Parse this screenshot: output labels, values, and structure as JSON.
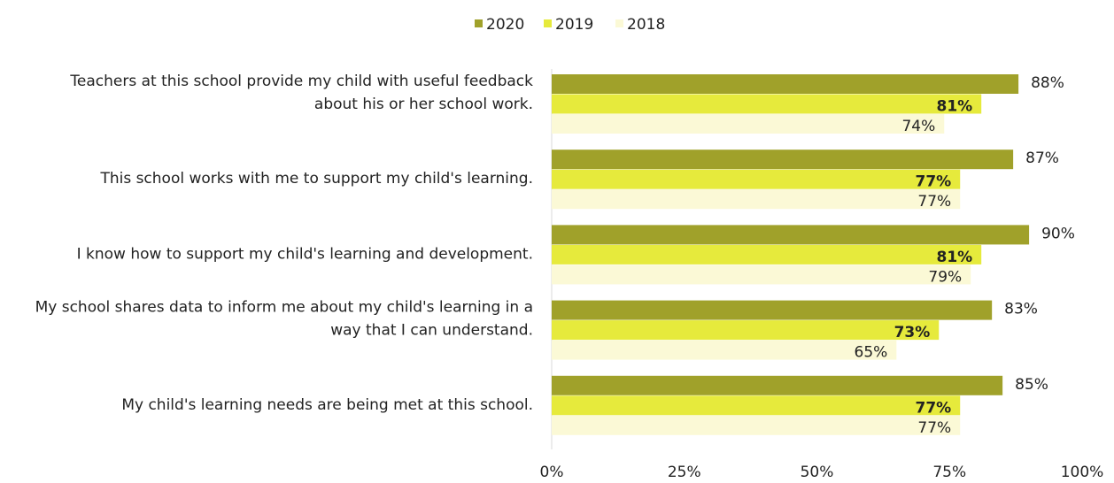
{
  "chart_data": {
    "type": "bar",
    "orientation": "horizontal",
    "title": "",
    "xlabel": "",
    "ylabel": "",
    "xlim": [
      0,
      100
    ],
    "x_ticks": [
      "0%",
      "25%",
      "50%",
      "75%",
      "100%"
    ],
    "grid": false,
    "legend_position": "top",
    "categories": [
      "Teachers at this school provide my child with useful feedback about his or her school work.",
      "This school works with me to support my child's learning.",
      "I know how to support my child's learning and development.",
      "My school shares data to inform me about my child's learning in a way that I can understand.",
      "My child's learning needs are being met at this school."
    ],
    "category_lines": [
      [
        "Teachers at this school provide my child with useful feedback",
        "about his or her school work."
      ],
      [
        "This school works with me to support my child's learning."
      ],
      [
        "I know how to support my child's learning and development."
      ],
      [
        "My school shares data to inform me about my child's learning in a",
        "way that I can understand."
      ],
      [
        "My child's learning needs are being met at this school."
      ]
    ],
    "series": [
      {
        "name": "2020",
        "color": "#a0a12a",
        "values": [
          88,
          87,
          90,
          83,
          85
        ],
        "labels": [
          "88%",
          "87%",
          "90%",
          "83%",
          "85%"
        ]
      },
      {
        "name": "2019",
        "color": "#e6ea3c",
        "values": [
          81,
          77,
          81,
          73,
          77
        ],
        "labels": [
          "81%",
          "77%",
          "81%",
          "73%",
          "77%"
        ]
      },
      {
        "name": "2018",
        "color": "#fbf9d6",
        "values": [
          74,
          77,
          79,
          65,
          77
        ],
        "labels": [
          "74%",
          "77%",
          "79%",
          "65%",
          "77%"
        ]
      }
    ]
  }
}
